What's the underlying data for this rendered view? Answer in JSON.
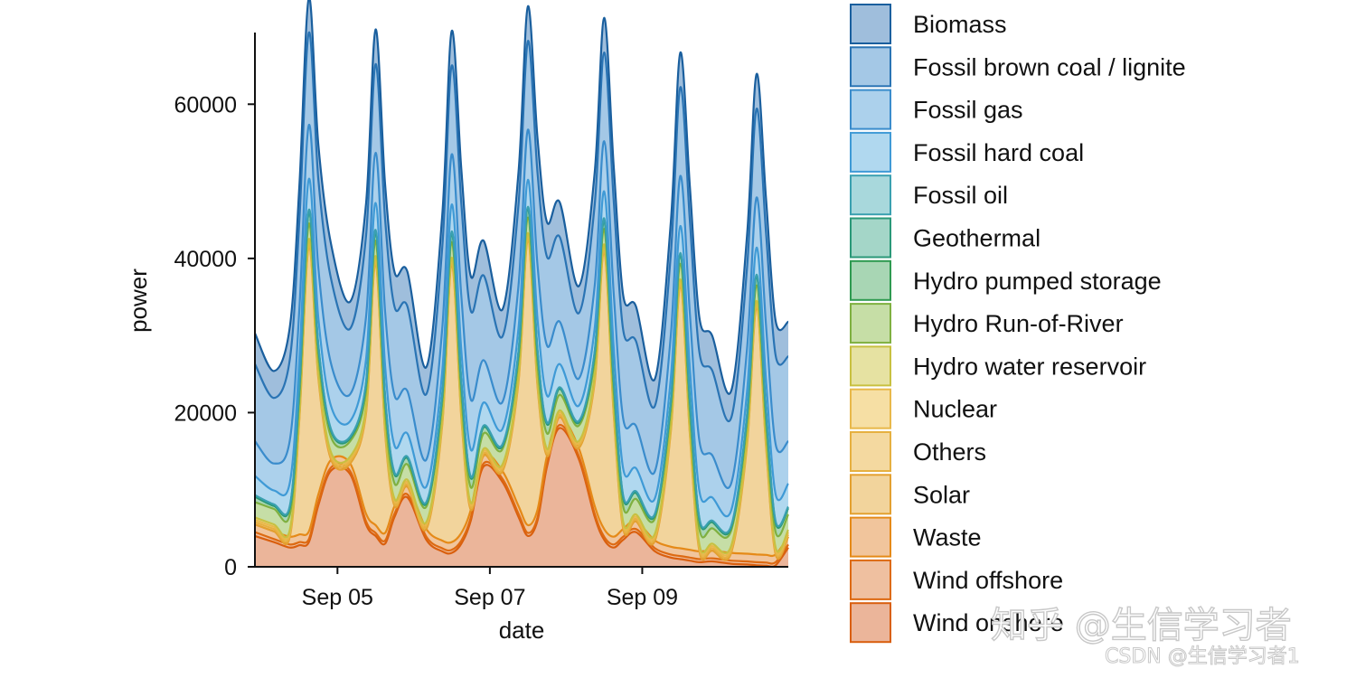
{
  "chart_data": {
    "type": "area",
    "stacked": true,
    "xlabel": "date",
    "ylabel": "power",
    "ylim": [
      0,
      70000
    ],
    "yticks": [
      0,
      20000,
      40000,
      60000
    ],
    "ytick_labels": [
      "0",
      "20000",
      "40000",
      "60000"
    ],
    "xlim": [
      "2015-09-03 22:00",
      "2015-09-10 22:00"
    ],
    "xticks": [
      "2015-09-05",
      "2015-09-07",
      "2015-09-09"
    ],
    "xtick_labels": [
      "Sep 05",
      "Sep 07",
      "Sep 09"
    ],
    "legend_position": "right, outside plot",
    "grid": false,
    "x": [
      "2015-09-03 22:00",
      "2015-09-04 04:00",
      "2015-09-04 09:00",
      "2015-09-04 12:00",
      "2015-09-04 15:00",
      "2015-09-04 18:00",
      "2015-09-04 22:00",
      "2015-09-05 04:00",
      "2015-09-05 09:00",
      "2015-09-05 12:00",
      "2015-09-05 15:00",
      "2015-09-05 18:00",
      "2015-09-05 22:00",
      "2015-09-06 04:00",
      "2015-09-06 09:00",
      "2015-09-06 12:00",
      "2015-09-06 15:00",
      "2015-09-06 18:00",
      "2015-09-06 22:00",
      "2015-09-07 04:00",
      "2015-09-07 09:00",
      "2015-09-07 12:00",
      "2015-09-07 15:00",
      "2015-09-07 18:00",
      "2015-09-07 22:00",
      "2015-09-08 04:00",
      "2015-09-08 09:00",
      "2015-09-08 12:00",
      "2015-09-08 15:00",
      "2015-09-08 18:00",
      "2015-09-08 22:00",
      "2015-09-09 04:00",
      "2015-09-09 09:00",
      "2015-09-09 12:00",
      "2015-09-09 15:00",
      "2015-09-09 18:00",
      "2015-09-09 22:00",
      "2015-09-10 04:00",
      "2015-09-10 09:00",
      "2015-09-10 12:00",
      "2015-09-10 15:00",
      "2015-09-10 18:00",
      "2015-09-10 22:00"
    ],
    "series": [
      {
        "name": "Wind onshore",
        "color": "#d95f0e",
        "fill": "#ebb59a",
        "values": [
          4000,
          3200,
          2500,
          2800,
          3200,
          8000,
          12500,
          12000,
          5500,
          4000,
          3000,
          6500,
          9000,
          3500,
          2000,
          1800,
          3000,
          6000,
          13000,
          11000,
          6500,
          4000,
          6000,
          13000,
          18000,
          14000,
          6500,
          3500,
          2500,
          3500,
          4500,
          2000,
          1200,
          1000,
          800,
          600,
          700,
          400,
          300,
          200,
          150,
          200,
          2500
        ]
      },
      {
        "name": "Wind offshore",
        "color": "#dd6a12",
        "fill": "#efc0a0",
        "values": [
          500,
          400,
          400,
          400,
          400,
          400,
          400,
          400,
          400,
          400,
          400,
          400,
          400,
          400,
          400,
          400,
          400,
          400,
          400,
          400,
          400,
          400,
          400,
          400,
          400,
          400,
          400,
          400,
          400,
          400,
          400,
          400,
          400,
          400,
          400,
          400,
          400,
          400,
          400,
          400,
          400,
          400,
          400
        ]
      },
      {
        "name": "Waste",
        "color": "#e58a18",
        "fill": "#f1c59c",
        "values": [
          1000,
          1000,
          1000,
          1000,
          1000,
          1000,
          1000,
          1000,
          1000,
          1000,
          1000,
          1000,
          1000,
          1000,
          1000,
          1000,
          1000,
          1000,
          1000,
          1000,
          1000,
          1000,
          1000,
          1000,
          1000,
          1000,
          1000,
          1000,
          1000,
          1000,
          1000,
          1000,
          1000,
          1000,
          1000,
          1000,
          1000,
          1000,
          1000,
          1000,
          1000,
          1000,
          1000
        ]
      },
      {
        "name": "Solar",
        "color": "#e3a030",
        "fill": "#f2d49c",
        "values": [
          0,
          0,
          0,
          15000,
          37000,
          15000,
          0,
          0,
          13000,
          34000,
          13000,
          0,
          0,
          0,
          15000,
          36000,
          15000,
          0,
          0,
          0,
          16000,
          37000,
          16000,
          0,
          0,
          0,
          16000,
          36000,
          16000,
          0,
          0,
          0,
          15000,
          34000,
          15000,
          0,
          0,
          0,
          14000,
          32000,
          14000,
          0,
          0
        ]
      },
      {
        "name": "Others",
        "color": "#e6b040",
        "fill": "#f4d9a0",
        "values": [
          300,
          300,
          300,
          300,
          300,
          300,
          300,
          300,
          300,
          300,
          300,
          300,
          300,
          300,
          300,
          300,
          300,
          300,
          300,
          300,
          300,
          300,
          300,
          300,
          300,
          300,
          300,
          300,
          300,
          300,
          300,
          300,
          300,
          300,
          300,
          300,
          300,
          300,
          300,
          300,
          300,
          300,
          300
        ]
      },
      {
        "name": "Nuclear",
        "color": "#e8b84a",
        "fill": "#f6dfa4",
        "values": [
          300,
          300,
          300,
          300,
          300,
          300,
          300,
          300,
          300,
          300,
          300,
          300,
          300,
          300,
          300,
          300,
          300,
          300,
          300,
          300,
          300,
          300,
          300,
          300,
          300,
          300,
          300,
          300,
          300,
          300,
          300,
          300,
          300,
          300,
          300,
          300,
          300,
          300,
          300,
          300,
          300,
          300,
          300
        ]
      },
      {
        "name": "Hydro water reservoir",
        "color": "#c8c040",
        "fill": "#e6e2a2",
        "values": [
          300,
          300,
          300,
          300,
          300,
          300,
          300,
          300,
          300,
          300,
          300,
          300,
          300,
          300,
          300,
          300,
          300,
          300,
          300,
          300,
          300,
          300,
          300,
          300,
          300,
          300,
          300,
          300,
          300,
          300,
          300,
          300,
          300,
          300,
          300,
          300,
          300,
          300,
          300,
          300,
          300,
          300,
          300
        ]
      },
      {
        "name": "Hydro Run-of-River",
        "color": "#7fb040",
        "fill": "#c6dea6",
        "values": [
          2000,
          2000,
          2000,
          2000,
          2000,
          2000,
          2000,
          2000,
          2000,
          2000,
          2000,
          2000,
          2000,
          2000,
          2000,
          2000,
          2000,
          2000,
          2000,
          2000,
          2000,
          2000,
          2000,
          2000,
          2000,
          2000,
          2000,
          2000,
          2000,
          2000,
          2000,
          2000,
          2000,
          2000,
          2000,
          2000,
          2000,
          2000,
          2000,
          2000,
          2000,
          2000,
          2000
        ]
      },
      {
        "name": "Hydro pumped storage",
        "color": "#2e9a50",
        "fill": "#a8d6b4",
        "values": [
          700,
          400,
          900,
          1200,
          1600,
          1200,
          800,
          400,
          900,
          1200,
          1600,
          1200,
          800,
          400,
          900,
          1200,
          1600,
          1200,
          800,
          400,
          900,
          1200,
          1600,
          1200,
          800,
          400,
          900,
          1200,
          1600,
          1200,
          800,
          400,
          900,
          1200,
          1600,
          1200,
          800,
          400,
          900,
          1200,
          1600,
          1200,
          800
        ]
      },
      {
        "name": "Geothermal",
        "color": "#2a9878",
        "fill": "#a4d6c8",
        "values": [
          0,
          0,
          0,
          0,
          0,
          0,
          0,
          0,
          0,
          0,
          0,
          0,
          0,
          0,
          0,
          0,
          0,
          0,
          0,
          0,
          0,
          0,
          0,
          0,
          0,
          0,
          0,
          0,
          0,
          0,
          0,
          0,
          0,
          0,
          0,
          0,
          0,
          0,
          0,
          0,
          0,
          0,
          0
        ]
      },
      {
        "name": "Fossil oil",
        "color": "#3aa0b0",
        "fill": "#a8d8dc",
        "values": [
          200,
          200,
          200,
          200,
          200,
          200,
          200,
          200,
          200,
          200,
          200,
          200,
          200,
          200,
          200,
          200,
          200,
          200,
          200,
          200,
          200,
          200,
          200,
          200,
          200,
          200,
          200,
          200,
          200,
          200,
          200,
          200,
          200,
          200,
          200,
          200,
          200,
          200,
          200,
          200,
          200,
          200,
          200
        ]
      },
      {
        "name": "Fossil hard coal",
        "color": "#3f9ad6",
        "fill": "#b0d8ef",
        "values": [
          2500,
          1800,
          3000,
          3500,
          4000,
          3500,
          3000,
          2000,
          3000,
          3500,
          4000,
          3500,
          3000,
          2000,
          3000,
          3500,
          4000,
          3500,
          3000,
          2000,
          3000,
          3500,
          4000,
          3500,
          3000,
          2000,
          3000,
          3500,
          4000,
          3500,
          3000,
          2000,
          3000,
          3500,
          4000,
          3500,
          3000,
          2000,
          3000,
          3500,
          4000,
          3500,
          3000
        ]
      },
      {
        "name": "Fossil gas",
        "color": "#3a8ccc",
        "fill": "#acd1ec",
        "values": [
          4500,
          3500,
          5500,
          6500,
          7000,
          6500,
          5500,
          3500,
          5500,
          6500,
          7000,
          6500,
          5500,
          3500,
          5500,
          6500,
          7000,
          6500,
          5500,
          3500,
          5500,
          6500,
          7000,
          6500,
          5500,
          3500,
          5500,
          6500,
          7000,
          6500,
          5500,
          3500,
          5500,
          6500,
          7000,
          6500,
          5500,
          3500,
          5500,
          6500,
          7000,
          6500,
          5500
        ]
      },
      {
        "name": "Fossil brown coal / lignite",
        "color": "#2a74b4",
        "fill": "#a4c8e6",
        "values": [
          10000,
          8500,
          10500,
          11500,
          12000,
          11500,
          11000,
          8500,
          10500,
          11500,
          12000,
          11500,
          11000,
          8500,
          10500,
          11500,
          12000,
          11500,
          11000,
          8500,
          10500,
          11500,
          12000,
          11500,
          11000,
          8500,
          10500,
          11500,
          12000,
          11500,
          11000,
          8500,
          10500,
          11500,
          12000,
          11500,
          11000,
          8500,
          10500,
          11500,
          12000,
          11500,
          11000
        ]
      },
      {
        "name": "Biomass",
        "color": "#1a5f9e",
        "fill": "#9fbedc",
        "values": [
          4000,
          3500,
          4200,
          4500,
          4500,
          4500,
          4500,
          3500,
          4200,
          4500,
          4500,
          4500,
          4500,
          3500,
          4200,
          4500,
          4500,
          4500,
          4500,
          3500,
          4200,
          4500,
          4500,
          4500,
          4500,
          3500,
          4200,
          4500,
          4500,
          4500,
          4500,
          3500,
          4200,
          4500,
          4500,
          4500,
          4500,
          3500,
          4200,
          4500,
          4500,
          4500,
          4500
        ]
      }
    ]
  },
  "legend": {
    "items": [
      "Biomass",
      "Fossil brown coal / lignite",
      "Fossil gas",
      "Fossil hard coal",
      "Fossil oil",
      "Geothermal",
      "Hydro pumped storage",
      "Hydro Run-of-River",
      "Hydro water reservoir",
      "Nuclear",
      "Others",
      "Solar",
      "Waste",
      "Wind offshore",
      "Wind onshore"
    ]
  },
  "watermark": {
    "main": "知乎 @生信学习者",
    "sub": "CSDN @生信学习者1"
  }
}
